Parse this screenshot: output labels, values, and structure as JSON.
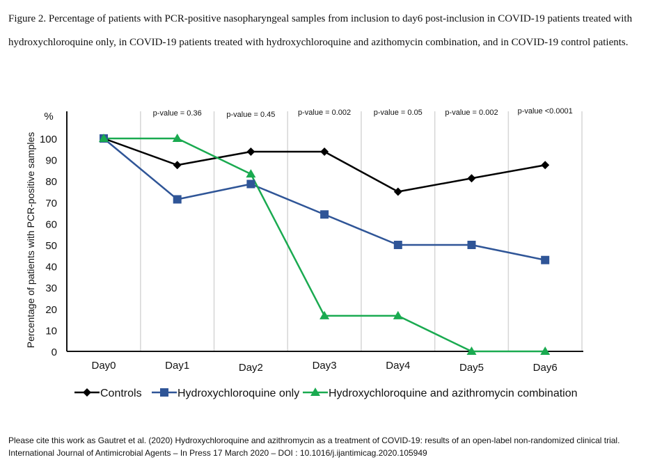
{
  "caption": "Figure 2. Percentage of patients with PCR-positive nasopharyngeal samples from inclusion to day6 post-inclusion in COVID-19 patients treated with hydroxychloroquine only, in COVID-19 patients treated with hydroxychloroquine and azithomycin combination, and in COVID-19 control patients.",
  "citation": "Please cite this work as Gautret et al. (2020) Hydroxychloroquine and azithromycin as a treatment of COVID-19: results of an open-label non-randomized clinical trial. International Journal of Antimicrobial Agents – In Press 17 March 2020 – DOI : 10.1016/j.ijantimicag.2020.105949",
  "chart_data": {
    "type": "line",
    "title": "",
    "xlabel": "",
    "ylabel": "Percentage of patients with PCR-positive samples",
    "y_unit_label": "%",
    "ylim": [
      0,
      100
    ],
    "yticks": [
      0,
      10,
      20,
      30,
      40,
      50,
      60,
      70,
      80,
      90,
      100
    ],
    "categories": [
      "Day0",
      "Day1",
      "Day2",
      "Day3",
      "Day4",
      "Day5",
      "Day6"
    ],
    "grid": "vertical",
    "legend_position": "bottom",
    "p_values": [
      "p-value = 0.36",
      "p-value = 0.45",
      "p-value = 0.002",
      "p-value = 0.05",
      "p-value = 0.002",
      "p-value <0.0001"
    ],
    "series": [
      {
        "name": "Controls",
        "marker": "diamond",
        "color": "#000000",
        "values": [
          100,
          87.5,
          93.8,
          93.8,
          75.0,
          81.3,
          87.5
        ]
      },
      {
        "name": "Hydroxychloroquine only",
        "marker": "square",
        "color": "#2f5597",
        "values": [
          100,
          71.4,
          78.6,
          64.3,
          50.0,
          50.0,
          42.9
        ]
      },
      {
        "name": "Hydroxychloroquine and azithromycin combination",
        "marker": "triangle",
        "color": "#1aaa50",
        "values": [
          100,
          100,
          83.3,
          16.7,
          16.7,
          0,
          0
        ]
      }
    ]
  }
}
